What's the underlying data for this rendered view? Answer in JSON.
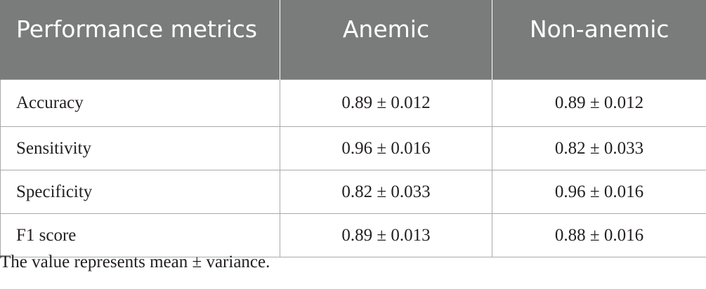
{
  "table": {
    "headers": [
      "Performance metrics",
      "Anemic",
      "Non-anemic"
    ],
    "rows": [
      {
        "metric": "Accuracy",
        "anemic": "0.89 ± 0.012",
        "non_anemic": "0.89 ± 0.012"
      },
      {
        "metric": "Sensitivity",
        "anemic": "0.96 ± 0.016",
        "non_anemic": "0.82 ± 0.033"
      },
      {
        "metric": "Specificity",
        "anemic": "0.82 ± 0.033",
        "non_anemic": "0.96 ± 0.016"
      },
      {
        "metric": "F1 score",
        "anemic": "0.89 ± 0.013",
        "non_anemic": "0.88 ± 0.016"
      }
    ]
  },
  "footnote": "The value represents mean ± variance.",
  "colors": {
    "header_bg": "#7a7c7b",
    "header_text": "#ffffff",
    "border": "#a7a9ac",
    "body_text": "#231f20"
  }
}
